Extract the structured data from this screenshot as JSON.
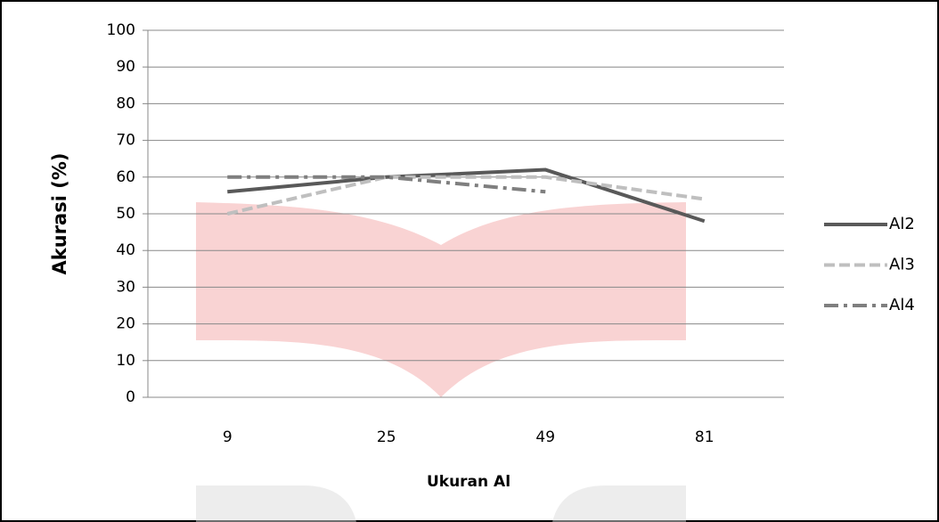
{
  "chart_data": {
    "type": "line",
    "x_label": "Ukuran Al",
    "y_label": "Akurasi (%)",
    "categories": [
      "9",
      "25",
      "49",
      "81"
    ],
    "series": [
      {
        "name": "Al2",
        "color": "#595959",
        "dash": "solid",
        "values": [
          56,
          60,
          62,
          48
        ]
      },
      {
        "name": "Al3",
        "color": "#bfbfbf",
        "dash": "dashed",
        "values": [
          50,
          60,
          60,
          54
        ]
      },
      {
        "name": "Al4",
        "color": "#7f7f7f",
        "dash": "dashdot",
        "values": [
          60,
          60,
          56,
          null
        ]
      }
    ],
    "ylim": [
      0,
      100
    ],
    "yticks": [
      0,
      10,
      20,
      30,
      40,
      50,
      60,
      70,
      80,
      90,
      100
    ],
    "grid": true,
    "legend": "right"
  }
}
